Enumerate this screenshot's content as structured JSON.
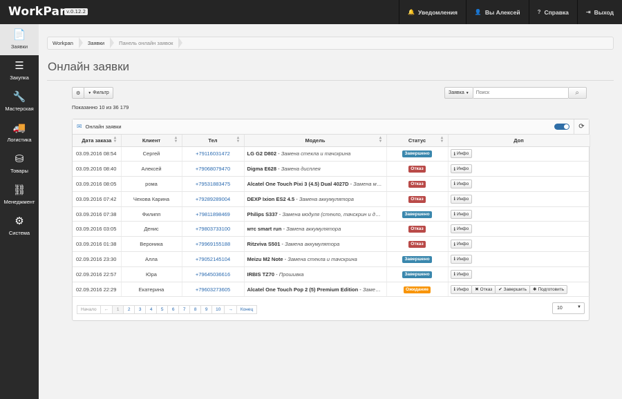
{
  "app": {
    "brand": "WorkPan",
    "version": "v.0.12.2"
  },
  "topnav": [
    {
      "icon": "bell-icon",
      "glyph": "🔔",
      "label": "Уведомления"
    },
    {
      "icon": "user-icon",
      "glyph": "👤",
      "label": "Вы Алексей"
    },
    {
      "icon": "help-icon",
      "glyph": "?",
      "label": "Справка"
    },
    {
      "icon": "logout-icon",
      "glyph": "⇥",
      "label": "Выход"
    }
  ],
  "sidebar": [
    {
      "name": "zayavki",
      "glyph": "📄",
      "label": "Заявки",
      "active": true
    },
    {
      "name": "zakupka",
      "glyph": "☰",
      "label": "Закупка"
    },
    {
      "name": "masterskaya",
      "glyph": "🔧",
      "label": "Мастерская"
    },
    {
      "name": "logistika",
      "glyph": "🚚",
      "label": "Логистика"
    },
    {
      "name": "tovary",
      "glyph": "⛁",
      "label": "Товары"
    },
    {
      "name": "menedzhment",
      "glyph": "⛓",
      "label": "Менеджмент"
    },
    {
      "name": "sistema",
      "glyph": "⚙",
      "label": "Система"
    }
  ],
  "breadcrumb": [
    "Workpan",
    "Заявки",
    "Панель онлайн заявок"
  ],
  "page_title": "Онлайн заявки",
  "toolbar": {
    "settings_glyph": "⚙",
    "filter_label": "Фильтр",
    "filter_glyph": "▼"
  },
  "shown_text": "Показанно 10 из 36 179",
  "search": {
    "scope_label": "Заявка",
    "placeholder": "Поиск",
    "button_glyph": "⌕"
  },
  "panel": {
    "title": "Онлайн заявки",
    "refresh_glyph": "⟳"
  },
  "table": {
    "headers": [
      "Дата заказа",
      "Клиент",
      "Тел",
      "Модель",
      "Статус",
      "Доп"
    ],
    "rows": [
      {
        "date": "03.09.2016 08:54",
        "client": "Сергей",
        "tel": "+79116031472",
        "model": "LG G2 D802",
        "repair": "Замена стекла и тачскрина",
        "status": "Завершено",
        "kind": "done"
      },
      {
        "date": "03.09.2016 08:40",
        "client": "Алексей",
        "tel": "+79068079470",
        "model": "Digma E628",
        "repair": "Замена дисплея",
        "status": "Отказ",
        "kind": "rej"
      },
      {
        "date": "03.09.2016 08:05",
        "client": "рома",
        "tel": "+79531883475",
        "model": "Alcatel One Touch Pixi 3 (4.5) Dual 4027D",
        "repair": "Замена модуля (стекло, тачскрин и дисплей)",
        "status": "Отказ",
        "kind": "rej"
      },
      {
        "date": "03.09.2016 07:42",
        "client": "Чехова Карина",
        "tel": "+79289289004",
        "model": "DEXP Ixion ES2 4.5",
        "repair": "Замена аккумулятора",
        "status": "Отказ",
        "kind": "rej"
      },
      {
        "date": "03.09.2016 07:38",
        "client": "Филипп",
        "tel": "+79811898469",
        "model": "Philips S337",
        "repair": "Замена модуля (стекло, тачскрин и дисплей)",
        "status": "Завершено",
        "kind": "done"
      },
      {
        "date": "03.09.2016 03:05",
        "client": "Денис",
        "tel": "+79803733100",
        "model": "мтс smart run",
        "repair": "Замена аккумулятора",
        "status": "Отказ",
        "kind": "rej"
      },
      {
        "date": "03.09.2016 01:38",
        "client": "Вероника",
        "tel": "+79969155188",
        "model": "Ritzviva S501",
        "repair": "Замена аккумулятора",
        "status": "Отказ",
        "kind": "rej"
      },
      {
        "date": "02.09.2016 23:30",
        "client": "Алла",
        "tel": "+79052145104",
        "model": "Meizu M2 Note",
        "repair": "Замена стекла и тачскрина",
        "status": "Завершено",
        "kind": "done"
      },
      {
        "date": "02.09.2016 22:57",
        "client": "Юра",
        "tel": "+79645036616",
        "model": "IRBIS TZ70",
        "repair": "Прошивка",
        "status": "Завершено",
        "kind": "done"
      },
      {
        "date": "02.09.2016 22:29",
        "client": "Екатерина",
        "tel": "+79603273605",
        "model": "Alcatel One Touch Pop 2 (5) Premium Edition",
        "repair": "Замена модуля",
        "status": "Ожидание",
        "kind": "wait"
      }
    ],
    "action_labels": {
      "info": "Инфо",
      "reject": "Отказ",
      "finish": "Завершить",
      "prepare": "Подготовить"
    }
  },
  "pagination": [
    "Начало",
    "←",
    "1",
    "2",
    "3",
    "4",
    "5",
    "6",
    "7",
    "8",
    "9",
    "10",
    "→",
    "Конец"
  ],
  "per_page": "10"
}
